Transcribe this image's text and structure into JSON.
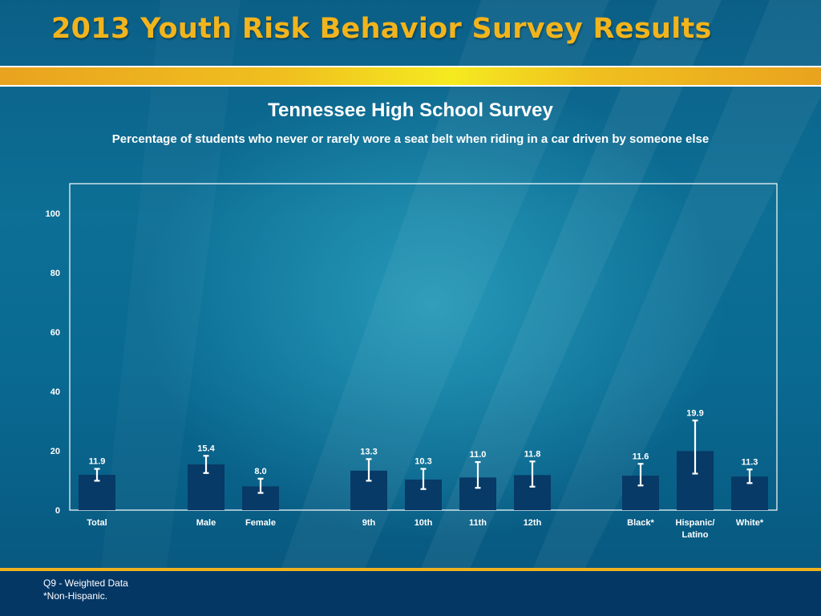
{
  "slide": {
    "title": "2013 Youth Risk Behavior Survey Results"
  },
  "colors": {
    "accent_gold": "#f2b41c",
    "bar_fill": "#073a66",
    "footer_bg": "#053765"
  },
  "chart_data": {
    "type": "bar",
    "title": "Tennessee High School Survey",
    "subtitle": "Percentage of students who never or rarely wore a seat belt when riding in a car driven by someone else",
    "xlabel": "",
    "ylabel": "",
    "ylim": [
      0,
      100
    ],
    "yticks": [
      0,
      20,
      40,
      60,
      80,
      100
    ],
    "grid": false,
    "categories": [
      "Total",
      "Male",
      "Female",
      "9th",
      "10th",
      "11th",
      "12th",
      "Black*",
      "Hispanic/ Latino",
      "White*"
    ],
    "category_lines": [
      [
        "Total"
      ],
      [
        "Male"
      ],
      [
        "Female"
      ],
      [
        "9th"
      ],
      [
        "10th"
      ],
      [
        "11th"
      ],
      [
        "12th"
      ],
      [
        "Black*"
      ],
      [
        "Hispanic/",
        "Latino"
      ],
      [
        "White*"
      ]
    ],
    "values": [
      11.9,
      15.4,
      8.0,
      13.3,
      10.3,
      11.0,
      11.8,
      11.6,
      19.9,
      11.3
    ],
    "value_labels": [
      "11.9",
      "15.4",
      "8.0",
      "13.3",
      "10.3",
      "11.0",
      "11.8",
      "11.6",
      "19.9",
      "11.3"
    ],
    "error_bars": [
      [
        9.9,
        13.9
      ],
      [
        12.5,
        18.3
      ],
      [
        5.8,
        10.6
      ],
      [
        9.9,
        17.2
      ],
      [
        7.1,
        13.9
      ],
      [
        7.5,
        16.2
      ],
      [
        7.9,
        16.4
      ],
      [
        8.3,
        15.6
      ],
      [
        12.3,
        30.2
      ],
      [
        9.1,
        13.7
      ]
    ],
    "groups": [
      [
        "Total"
      ],
      [
        "Male",
        "Female"
      ],
      [
        "9th",
        "10th",
        "11th",
        "12th"
      ],
      [
        "Black*",
        "Hispanic/ Latino",
        "White*"
      ]
    ]
  },
  "footnotes": [
    "Q9 - Weighted Data",
    "*Non-Hispanic."
  ]
}
